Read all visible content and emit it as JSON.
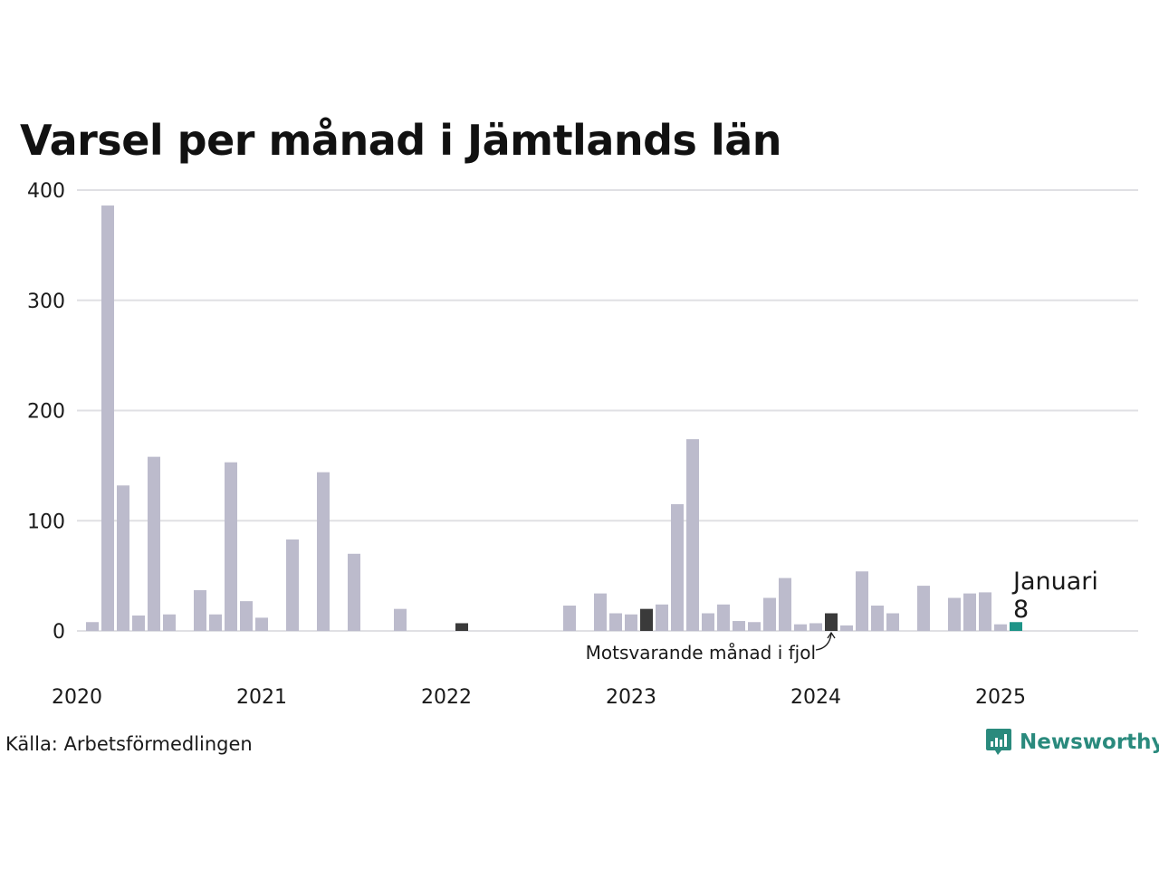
{
  "chart_data": {
    "type": "bar",
    "title": "Varsel per månad i Jämtlands län",
    "xlabel": "",
    "ylabel": "",
    "ylim": [
      0,
      400
    ],
    "yticks": [
      0,
      100,
      200,
      300,
      400
    ],
    "year_ticks": [
      "2020",
      "2021",
      "2022",
      "2023",
      "2024",
      "2025"
    ],
    "grid": true,
    "start_month": "2020-01",
    "values": [
      8,
      386,
      132,
      14,
      158,
      15,
      0,
      37,
      15,
      153,
      27,
      12,
      0,
      83,
      0,
      144,
      0,
      70,
      0,
      0,
      20,
      0,
      0,
      0,
      7,
      0,
      0,
      0,
      0,
      0,
      0,
      23,
      0,
      34,
      16,
      15,
      20,
      24,
      115,
      174,
      16,
      24,
      9,
      8,
      30,
      48,
      6,
      7,
      16,
      5,
      54,
      23,
      16,
      0,
      41,
      0,
      30,
      34,
      35,
      6,
      8
    ],
    "highlight": {
      "month": "2025-01",
      "label": "Januari",
      "value": 8
    },
    "comparison_months": [
      "2021-01",
      "2022-01",
      "2023-01",
      "2024-01"
    ],
    "annotation": "Motsvarande månad i fjol",
    "colors": {
      "bar": "#bcbbcc",
      "comparison": "#3a3a3a",
      "highlight": "#1e9488",
      "grid": "#e0e0e4"
    }
  },
  "source": "Källa: Arbetsförmedlingen",
  "brand": {
    "name": "Newsworthy",
    "icon": "newsworthy-logo-icon",
    "color": "#2a8a7d"
  }
}
